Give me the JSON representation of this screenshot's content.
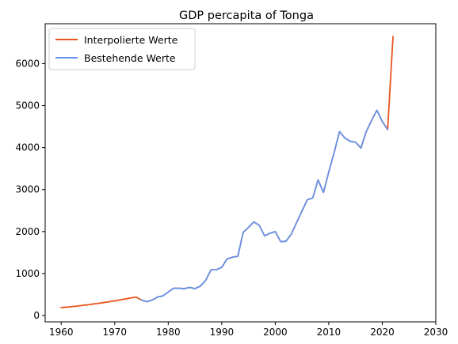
{
  "chart_data": {
    "type": "line",
    "title": "GDP percapita of Tonga",
    "xlabel": "",
    "ylabel": "",
    "xlim": [
      1957,
      2030
    ],
    "ylim": [
      -150,
      6950
    ],
    "xticks": [
      1960,
      1970,
      1980,
      1990,
      2000,
      2010,
      2020,
      2030
    ],
    "yticks": [
      0,
      1000,
      2000,
      3000,
      4000,
      5000,
      6000
    ],
    "grid": false,
    "legend_position": "top-left",
    "series": [
      {
        "name": "Interpolierte Werte",
        "color": "#e8541c",
        "x": [
          1960,
          1961,
          1962,
          1963,
          1964,
          1965,
          1966,
          1967,
          1968,
          1969,
          1970,
          1971,
          1972,
          1973,
          1974,
          1975,
          1976,
          1977,
          1978,
          1979,
          1980,
          1981,
          1982,
          1983,
          1984,
          1985,
          1986,
          1987,
          1988,
          1989,
          1990,
          1991,
          1992,
          1993,
          1994,
          1995,
          1996,
          1997,
          1998,
          1999,
          2000,
          2001,
          2002,
          2003,
          2004,
          2005,
          2006,
          2007,
          2008,
          2009,
          2010,
          2011,
          2012,
          2013,
          2014,
          2015,
          2016,
          2017,
          2018,
          2019,
          2020,
          2021,
          2022
        ],
        "y": [
          190,
          200,
          213,
          227,
          242,
          258,
          275,
          292,
          310,
          330,
          350,
          372,
          395,
          420,
          440,
          370,
          330,
          370,
          440,
          470,
          560,
          650,
          650,
          640,
          670,
          640,
          700,
          840,
          1090,
          1090,
          1150,
          1350,
          1390,
          1410,
          1980,
          2100,
          2230,
          2150,
          1900,
          1960,
          2000,
          1760,
          1770,
          1940,
          2220,
          2490,
          2760,
          2800,
          3230,
          2930,
          3420,
          3880,
          4380,
          4230,
          4150,
          4130,
          3990,
          4380,
          4650,
          4890,
          4620,
          4430,
          6640
        ]
      },
      {
        "name": "Bestehende Werte",
        "color": "#6495ed",
        "x": [
          1975,
          1976,
          1977,
          1978,
          1979,
          1980,
          1981,
          1982,
          1983,
          1984,
          1985,
          1986,
          1987,
          1988,
          1989,
          1990,
          1991,
          1992,
          1993,
          1994,
          1995,
          1996,
          1997,
          1998,
          1999,
          2000,
          2001,
          2002,
          2003,
          2004,
          2005,
          2006,
          2007,
          2008,
          2009,
          2010,
          2011,
          2012,
          2013,
          2014,
          2015,
          2016,
          2017,
          2018,
          2019,
          2020,
          2021
        ],
        "y": [
          370,
          330,
          370,
          440,
          470,
          560,
          650,
          650,
          640,
          670,
          640,
          700,
          840,
          1090,
          1090,
          1150,
          1350,
          1390,
          1410,
          1980,
          2100,
          2230,
          2150,
          1900,
          1960,
          2000,
          1760,
          1770,
          1940,
          2220,
          2490,
          2760,
          2800,
          3230,
          2930,
          3420,
          3880,
          4380,
          4230,
          4150,
          4130,
          3990,
          4380,
          4650,
          4890,
          4620,
          4430
        ]
      }
    ]
  }
}
